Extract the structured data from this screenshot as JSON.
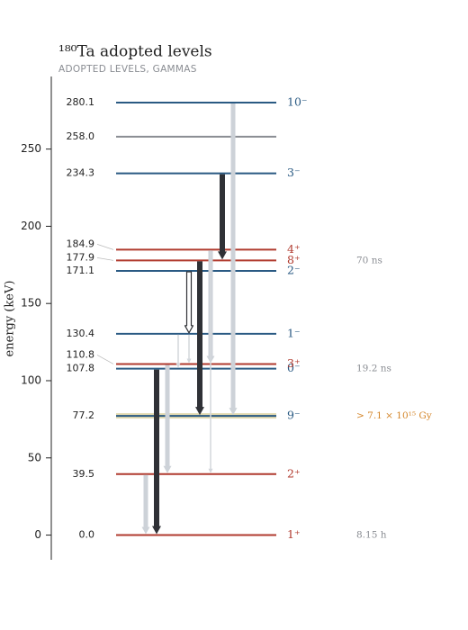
{
  "chart_data": {
    "type": "level-scheme",
    "title": "¹⁸⁰Ta  adopted levels",
    "subtitle": "ADOPTED LEVELS, GAMMAS",
    "y_label": "energy (keV)",
    "ylim": [
      -16,
      297
    ],
    "yticks": [
      0,
      50,
      100,
      150,
      200,
      250
    ],
    "levels": {
      "values": [
        0,
        39.5,
        77.2,
        107.8,
        110.8,
        130.4,
        171.1,
        177.9,
        184.9,
        234.3,
        258,
        280.1
      ],
      "value_labels": [
        "0.0",
        "39.5",
        "77.2",
        "107.8",
        "110.8",
        "130.4",
        "171.1",
        "177.9",
        "184.9",
        "234.3",
        "258.0",
        "280.1"
      ],
      "spins": [
        "1⁺",
        "2⁺",
        "9⁻",
        "0⁻",
        "3⁺",
        "1⁻",
        "2⁻",
        "8⁺",
        "4⁺",
        "3⁻",
        null,
        "10⁻"
      ],
      "colors": [
        "#b03a2e",
        "#b03a2e",
        "#2a5a83",
        "#2a5a83",
        "#b03a2e",
        "#2a5a83",
        "#2a5a83",
        "#b03a2e",
        "#b03a2e",
        "#2a5a83",
        "#8a8d93",
        "#2a5a83"
      ],
      "band_colors": [
        null,
        null,
        "#e4dab0",
        null,
        null,
        null,
        null,
        null,
        null,
        null,
        null,
        null
      ],
      "half_lives": [
        "8.15 h",
        null,
        "> 7.1 × 10¹⁵ Gy",
        "19.2 ns",
        null,
        null,
        null,
        "70 ns",
        null,
        null,
        null,
        null
      ],
      "half_life_colors": [
        "#8a8d93",
        null,
        "#d4862a",
        "#8a8d93",
        null,
        null,
        null,
        "#8a8d93",
        null,
        null,
        null,
        null
      ]
    },
    "gammas": {
      "from": [
        39.5,
        107.8,
        110.8,
        130.4,
        130.4,
        171.1,
        177.9,
        184.9,
        184.9,
        234.3,
        280.1
      ],
      "to": [
        0,
        0,
        39.5,
        107.8,
        110.8,
        130.4,
        77.2,
        110.8,
        39.5,
        177.9,
        77.2
      ],
      "intensity": [
        "weak",
        "strong",
        "weak",
        "faint",
        "faint",
        "outline",
        "strong",
        "weak",
        "faint",
        "strong",
        "weak"
      ]
    }
  }
}
